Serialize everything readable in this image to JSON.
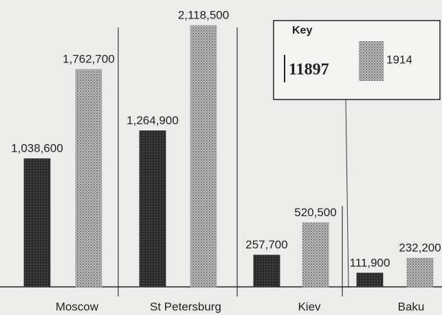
{
  "chart_data": {
    "type": "bar",
    "categories": [
      "Moscow",
      "St Petersburg",
      "Kiev",
      "Baku"
    ],
    "legend_title": "Key",
    "series": [
      {
        "name": "11897",
        "color": "#2b2b2b",
        "values": [
          1038600,
          1264900,
          257700,
          111900
        ],
        "value_labels": [
          "1,038,600",
          "1,264,900",
          "257,700",
          "111,900"
        ]
      },
      {
        "name": "1914",
        "color": "#a8a8a8",
        "values": [
          1762700,
          2118500,
          520500,
          232200
        ],
        "value_labels": [
          "1,762,700",
          "2,118,500",
          "520,500",
          "232,200"
        ]
      }
    ]
  }
}
